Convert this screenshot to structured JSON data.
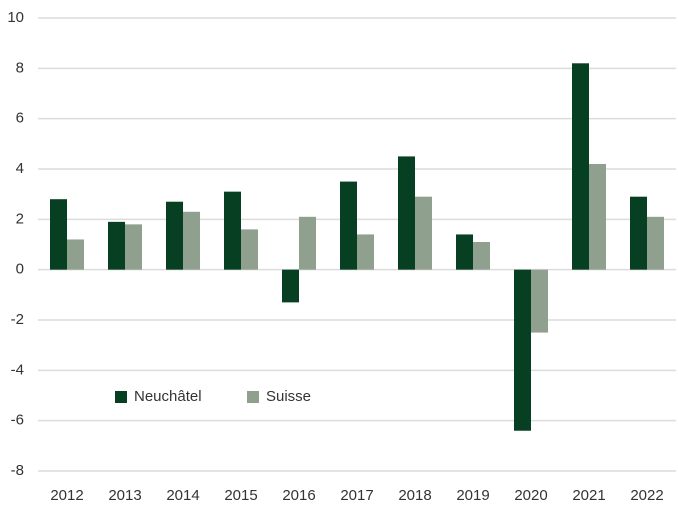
{
  "chart_data": {
    "type": "bar",
    "categories": [
      "2012",
      "2013",
      "2014",
      "2015",
      "2016",
      "2017",
      "2018",
      "2019",
      "2020",
      "2021",
      "2022"
    ],
    "series": [
      {
        "name": "Neuchâtel",
        "color": "#063f22",
        "values": [
          2.8,
          1.9,
          2.7,
          3.1,
          -1.3,
          3.5,
          4.5,
          1.4,
          -6.4,
          8.2,
          2.9
        ]
      },
      {
        "name": "Suisse",
        "color": "#8fa08f",
        "values": [
          1.2,
          1.8,
          2.3,
          1.6,
          2.1,
          1.4,
          2.9,
          1.1,
          -2.5,
          4.2,
          2.1
        ]
      }
    ],
    "ylim": [
      -8,
      10
    ],
    "yticks": [
      -8,
      -6,
      -4,
      -2,
      0,
      2,
      4,
      6,
      8,
      10
    ],
    "grid": true,
    "legend": "lower-left"
  }
}
